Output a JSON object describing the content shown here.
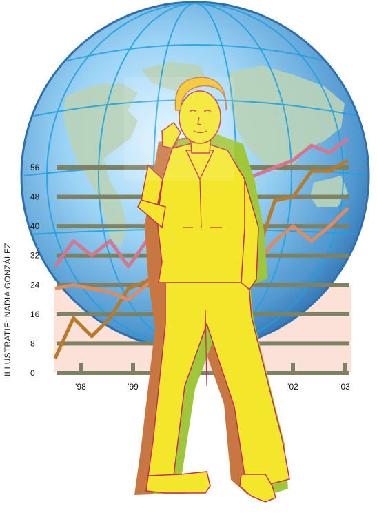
{
  "credit": "ILLUSTRATIE: NADIA GONZÁLEZ",
  "chart_data": {
    "type": "line",
    "y_ticks": [
      "0",
      "8",
      "16",
      "24",
      "32",
      "40",
      "48",
      "56"
    ],
    "ylim": [
      0,
      56
    ],
    "x_ticks": [
      "'98",
      "'99",
      "'02",
      "'03"
    ],
    "series": [
      {
        "color": "#b97a2a",
        "x": [
          0,
          0.5,
          1,
          1.5,
          2,
          2.5,
          3,
          3.5,
          4,
          4.5,
          5,
          5.5,
          6,
          6.5,
          7,
          7.5,
          8
        ],
        "values": [
          4,
          15,
          10,
          15,
          23,
          25,
          30,
          33,
          36,
          40,
          42,
          32,
          47,
          48,
          55,
          55,
          58
        ]
      },
      {
        "color": "#d8758c",
        "x": [
          0,
          0.5,
          1,
          1.5,
          2,
          2.5,
          3,
          3.5,
          4,
          4.5,
          5,
          5.5,
          6,
          6.5,
          7,
          7.5,
          8
        ],
        "values": [
          29,
          36,
          32,
          36,
          29,
          36,
          40,
          44,
          48,
          50,
          52,
          54,
          56,
          58,
          62,
          60,
          64
        ]
      },
      {
        "color": "#e08a60",
        "x": [
          0,
          0.5,
          1,
          1.5,
          2,
          2.5,
          3,
          3.5,
          4,
          4.5,
          5,
          5.5,
          6,
          6.5,
          7,
          7.5,
          8
        ],
        "values": [
          23,
          24,
          23,
          22,
          20,
          24,
          28,
          26,
          30,
          32,
          34,
          30,
          36,
          40,
          36,
          40,
          45
        ]
      }
    ]
  },
  "colors": {
    "globe_light": "#d6efff",
    "globe_mid": "#7cc4ef",
    "globe_dark": "#3978b5",
    "land": "#b9d3b8",
    "gridline": "#7d8264",
    "chart_band": "#fbe1d8",
    "suit": "#f4e62b",
    "suit_outline": "#c32f58",
    "shadow_brown": "#c87743",
    "shadow_green": "#a0c63a"
  }
}
